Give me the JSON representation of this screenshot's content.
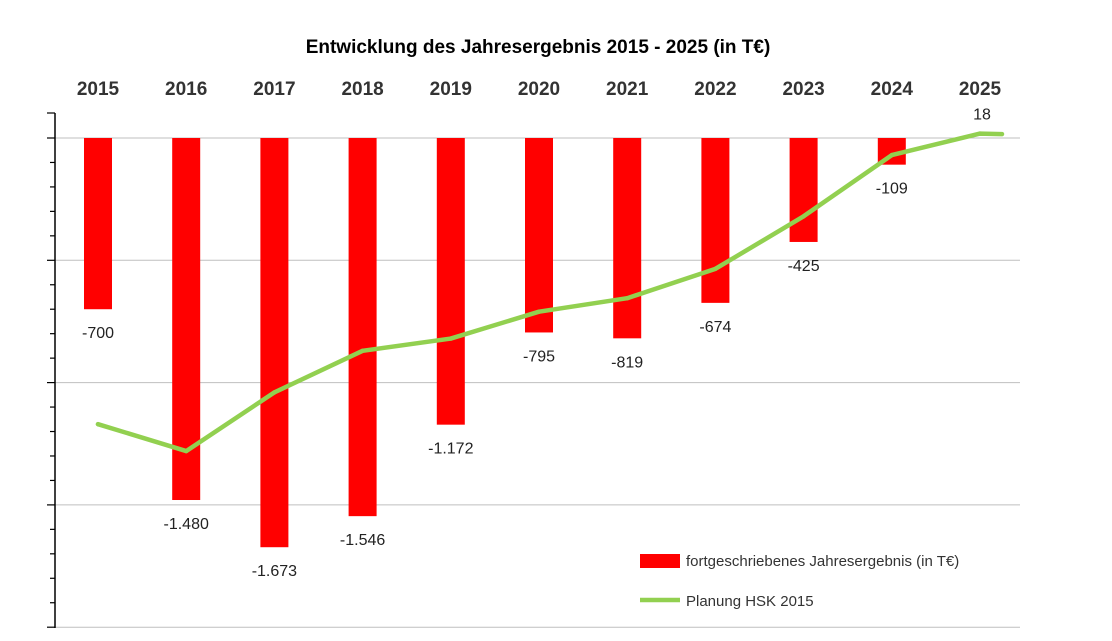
{
  "chart_data": {
    "type": "bar",
    "title": "Entwicklung des Jahresergebnis 2015 - 2025 (in T€)",
    "categories": [
      "2015",
      "2016",
      "2017",
      "2018",
      "2019",
      "2020",
      "2021",
      "2022",
      "2023",
      "2024",
      "2025"
    ],
    "series": [
      {
        "name": "fortgeschriebenes Jahresergebnis (in T€)",
        "type": "bar",
        "color": "#ff0000",
        "values": [
          -700,
          -1480,
          -1673,
          -1546,
          -1172,
          -795,
          -819,
          -674,
          -425,
          -109,
          null
        ],
        "labels": [
          "-700",
          "-1.480",
          "-1.673",
          "-1.546",
          "-1.172",
          "-795",
          "-819",
          "-674",
          "-425",
          "-109",
          ""
        ]
      },
      {
        "name": "Planung HSK 2015",
        "type": "line",
        "color": "#92d050",
        "values": [
          -1170,
          -1280,
          -1040,
          -870,
          -820,
          -710,
          -655,
          -535,
          -320,
          -70,
          18
        ],
        "labels": [
          "",
          "",
          "",
          "",
          "",
          "",
          "",
          "",
          "",
          "",
          "18"
        ]
      }
    ],
    "ylim": [
      -2000,
      50
    ],
    "yticks": [
      0,
      -500,
      -1000,
      -1500,
      -2000
    ],
    "grid": true,
    "xaxis_position": "top",
    "legend_position": "bottom-right"
  }
}
